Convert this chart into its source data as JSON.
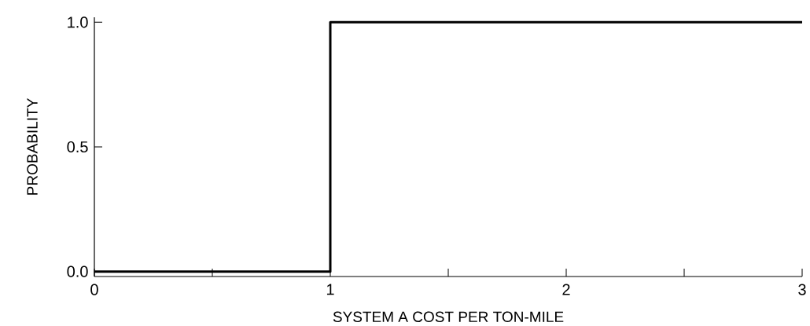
{
  "chart_data": {
    "type": "line",
    "x": [
      0,
      1,
      1,
      3
    ],
    "values": [
      0,
      0,
      1,
      1
    ],
    "color": "#000000",
    "xlabel": "SYSTEM A COST PER TON-MILE",
    "ylabel": "PROBABILITY",
    "xlim": [
      0,
      3
    ],
    "ylim": [
      -0.02,
      1.02
    ],
    "xticks": [
      0,
      {
        "value": 0.5,
        "label": null
      },
      1,
      {
        "value": 1.5,
        "label": null
      },
      2,
      {
        "value": 2.5,
        "label": null
      },
      3
    ],
    "yticks": [
      {
        "value": 0,
        "label": "0.0"
      },
      {
        "value": 0.5,
        "label": "0.5"
      },
      {
        "value": 1,
        "label": "1.0"
      }
    ],
    "grid": false
  }
}
